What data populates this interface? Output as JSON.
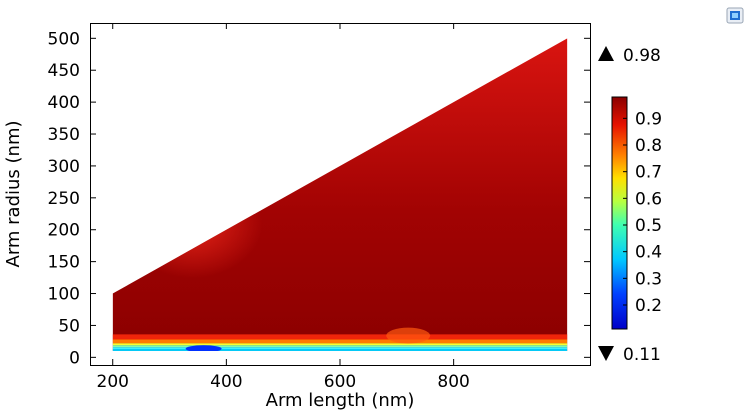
{
  "chart_data": {
    "type": "heatmap",
    "title": "",
    "xlabel": "Arm length (nm)",
    "ylabel": "Arm radius (nm)",
    "xlim": [
      160,
      1040
    ],
    "ylim": [
      -12,
      524
    ],
    "x_ticks": [
      200,
      400,
      600,
      800
    ],
    "y_ticks": [
      0,
      50,
      100,
      150,
      200,
      250,
      300,
      350,
      400,
      450,
      500
    ],
    "domain": {
      "x_range": [
        200,
        1000
      ],
      "y_bottom": 10,
      "top_edge": [
        [
          200,
          100
        ],
        [
          1000,
          500
        ]
      ]
    },
    "field_description": {
      "dominant_value": 0.97,
      "low_band_y": [
        10,
        28
      ],
      "minimum_location": [
        360,
        15
      ]
    },
    "colorbar": {
      "range": [
        0.11,
        0.98
      ],
      "ticks": [
        0.2,
        0.3,
        0.4,
        0.5,
        0.6,
        0.7,
        0.8,
        0.9
      ],
      "max_label": "0.98",
      "min_label": "0.11",
      "colormap": "rainbow"
    }
  },
  "toolbar": {
    "icon": "graphics-window-icon"
  }
}
